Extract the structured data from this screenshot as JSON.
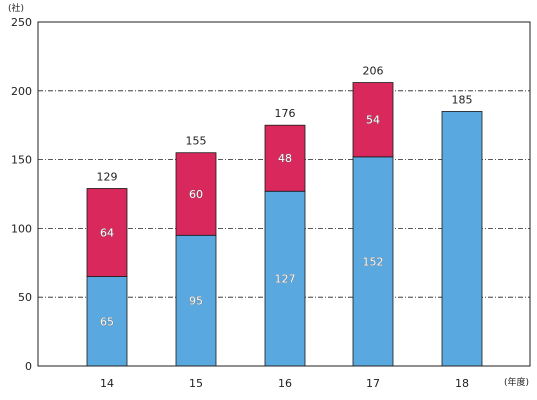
{
  "chart_data": {
    "type": "bar",
    "stacked": true,
    "categories": [
      "14",
      "15",
      "16",
      "17",
      "18"
    ],
    "series": [
      {
        "values": [
          65,
          95,
          127,
          152,
          185
        ],
        "color": "#5aa8e0"
      },
      {
        "values": [
          64,
          60,
          48,
          54,
          null
        ],
        "color": "#d8285c"
      }
    ],
    "totals": [
      129,
      155,
      176,
      206,
      185
    ],
    "segment_labels": [
      [
        "65",
        "64"
      ],
      [
        "95",
        "60"
      ],
      [
        "127",
        "48"
      ],
      [
        "152",
        "54"
      ],
      [
        null,
        null
      ]
    ],
    "y_unit": "(社)",
    "x_unit": "(年度)",
    "ylim": [
      0,
      250
    ],
    "yticks": [
      0,
      50,
      100,
      150,
      200,
      250
    ],
    "grid": true
  }
}
